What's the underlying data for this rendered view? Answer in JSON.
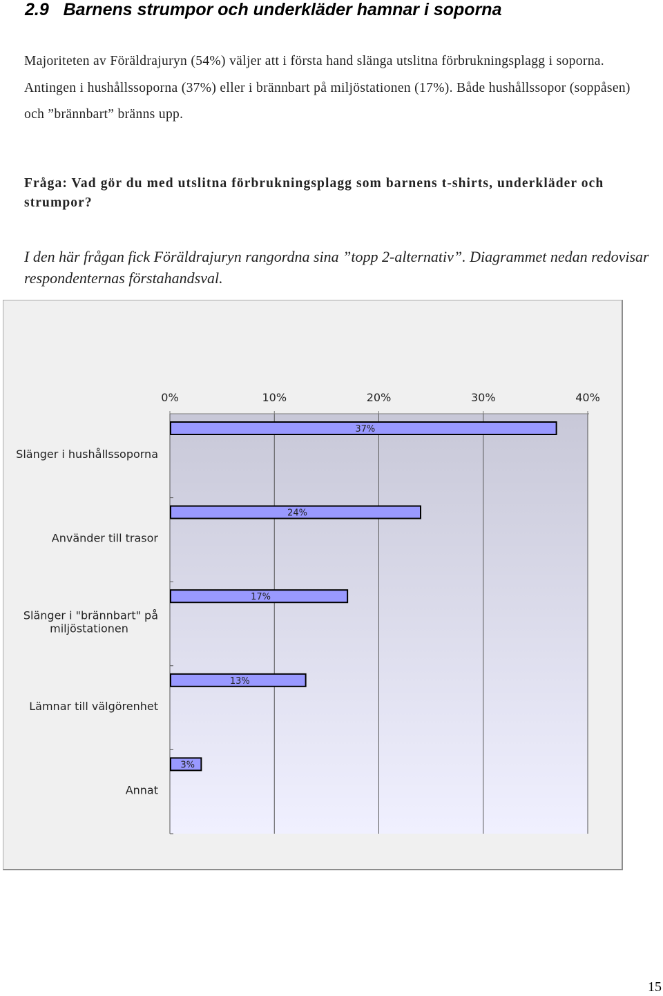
{
  "section": {
    "number": "2.9",
    "title": "Barnens strumpor och underkläder hamnar i soporna"
  },
  "body_text": "Majoriteten av Föräldrajuryn (54%) väljer att i första hand slänga utslitna förbrukningsplagg i soporna. Antingen i hushållssoporna (37%) eller i brännbart på miljöstationen (17%). Både hushållssopor (soppåsen) och ”brännbart” bränns upp.",
  "question": "Fråga: Vad gör du med utslitna förbrukningsplagg som barnens t-shirts, underkläder och strumpor?",
  "note": "I den här frågan fick Föräldrajuryn rangordna sina ”topp 2-alternativ”. Diagrammet nedan redovisar respondenternas förstahandsval.",
  "page_number": "15",
  "colors": {
    "bar_fill": "#9999ff",
    "plot_gradient_top": "#c8c8d8",
    "plot_gradient_bottom": "#f0f0ff",
    "frame_bg": "#f0f0f0"
  },
  "chart_data": {
    "type": "bar",
    "orientation": "horizontal",
    "categories": [
      [
        "Slänger i hushållssoporna"
      ],
      [
        "Använder till trasor"
      ],
      [
        "Slänger i \"brännbart\" på",
        "miljöstationen"
      ],
      [
        "Lämnar till välgörenhet"
      ],
      [
        "Annat"
      ]
    ],
    "values": [
      37,
      24,
      17,
      13,
      3
    ],
    "data_labels": [
      "37%",
      "24%",
      "17%",
      "13%",
      "3%"
    ],
    "xlim": [
      0,
      40
    ],
    "xticks": [
      0,
      10,
      20,
      30,
      40
    ],
    "xtick_labels": [
      "0%",
      "10%",
      "20%",
      "30%",
      "40%"
    ],
    "axis_position": "top",
    "gridlines": true,
    "title": "",
    "xlabel": "",
    "ylabel": ""
  }
}
